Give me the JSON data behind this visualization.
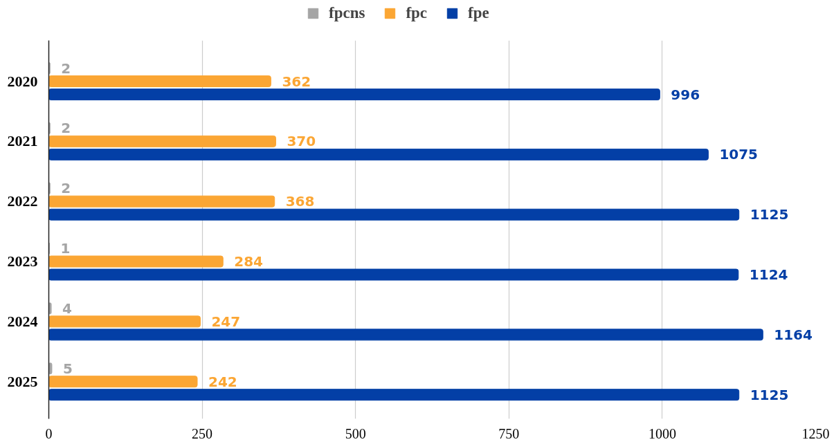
{
  "chart_data": {
    "type": "bar",
    "orientation": "horizontal",
    "categories": [
      "2020",
      "2021",
      "2022",
      "2023",
      "2024",
      "2025"
    ],
    "series": [
      {
        "name": "fpcns",
        "color": "#a5a5a5",
        "values": [
          2,
          2,
          2,
          1,
          4,
          5
        ]
      },
      {
        "name": "fpc",
        "color": "#fba634",
        "values": [
          362,
          370,
          368,
          284,
          247,
          242
        ]
      },
      {
        "name": "fpe",
        "color": "#033fa6",
        "values": [
          996,
          1075,
          1125,
          1124,
          1164,
          1125
        ]
      }
    ],
    "xlim": [
      0,
      1250
    ],
    "xticks": [
      0,
      250,
      500,
      750,
      1000,
      1250
    ],
    "grid": "x",
    "legend": "top",
    "data_labels": true
  }
}
